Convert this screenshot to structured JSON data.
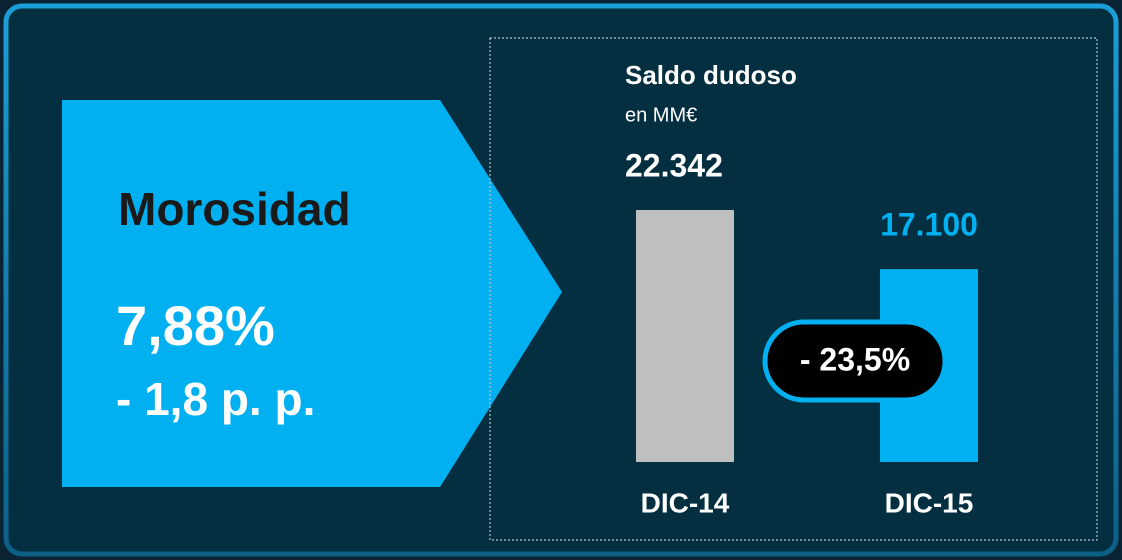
{
  "panel": {
    "title": "Morosidad",
    "value": "7,88%",
    "change": "- 1,8 p. p."
  },
  "chart_data": {
    "type": "bar",
    "title": "Saldo dudoso",
    "subtitle": "en MM€",
    "categories": [
      "DIC-14",
      "DIC-15"
    ],
    "values": [
      22342,
      17100
    ],
    "value_labels": [
      "22.342",
      "17.100"
    ],
    "colors": [
      "#bfbfbf",
      "#00b0f0"
    ],
    "value_label_colors": [
      "#ffffff",
      "#00b0f0"
    ],
    "annotation": "- 23,5%"
  }
}
